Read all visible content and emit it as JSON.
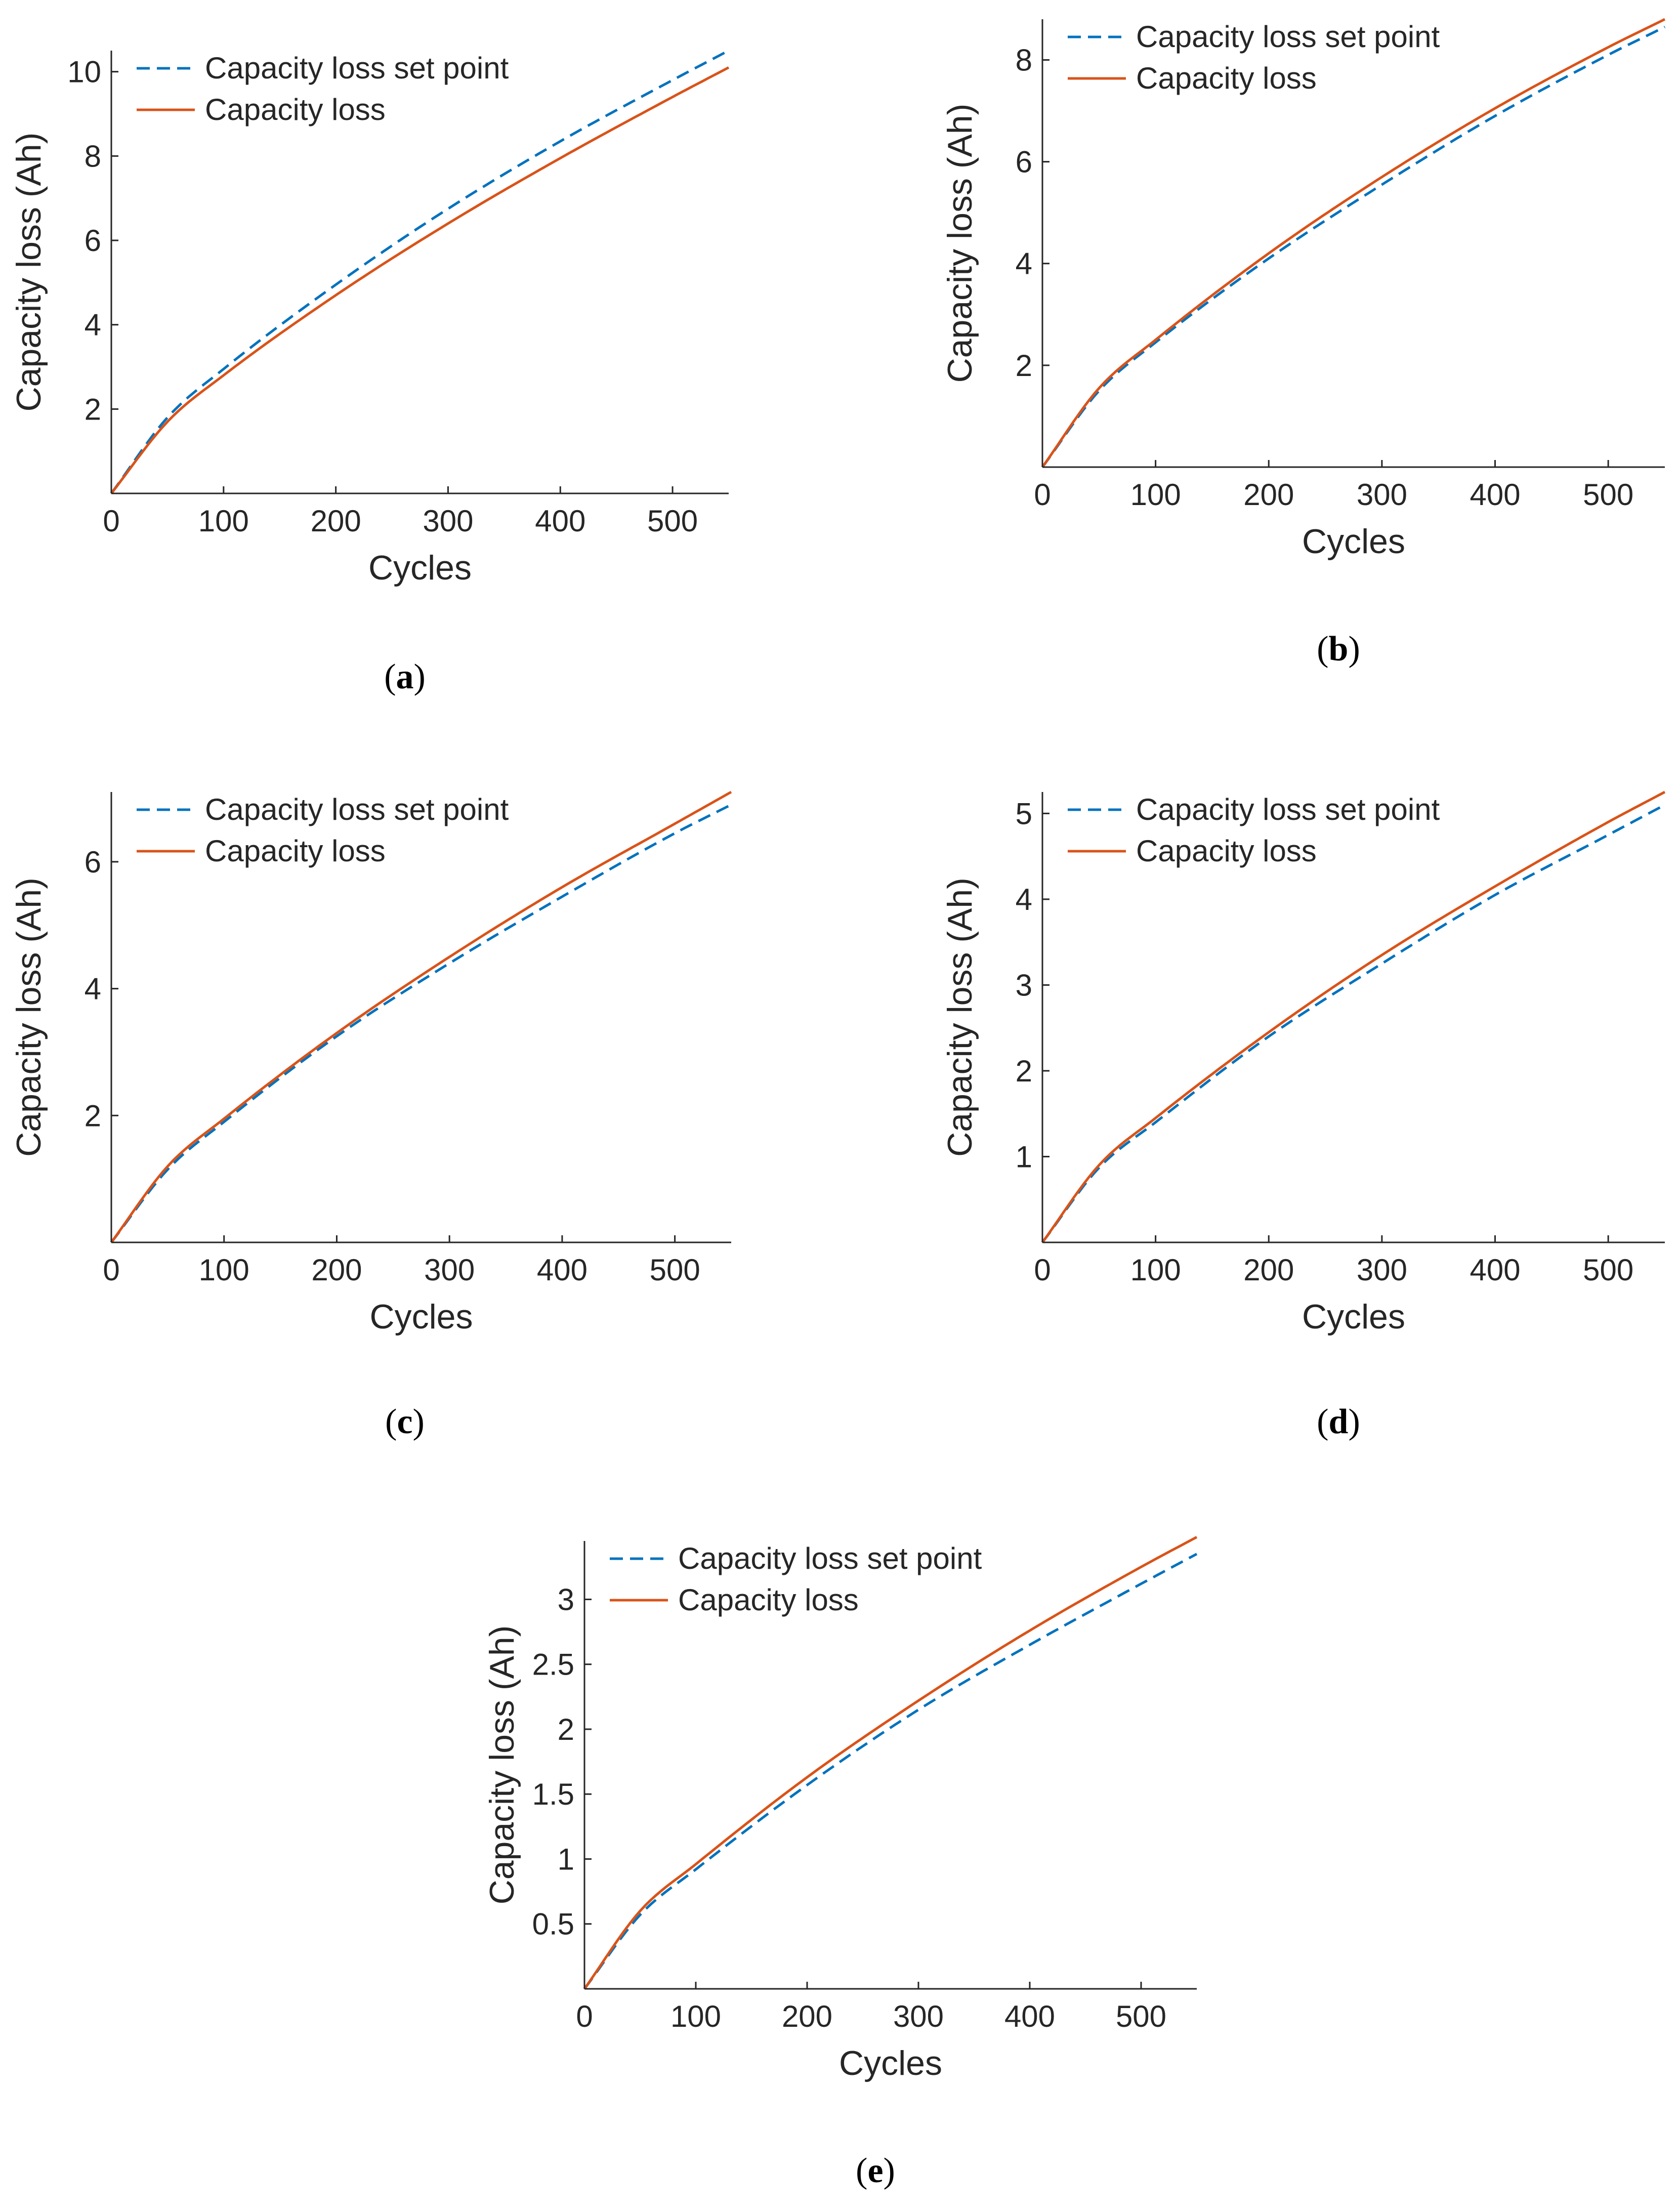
{
  "colors": {
    "set_point": "#0072BD",
    "capacity_loss": "#D95319",
    "axis": "#262626"
  },
  "chart_data": [
    {
      "type": "line",
      "panel": "a",
      "xlabel": "Cycles",
      "ylabel": "Capacity loss (Ah)",
      "xlim": [
        0,
        550
      ],
      "ylim": [
        0,
        10.5
      ],
      "xticks": [
        0,
        100,
        200,
        300,
        400,
        500
      ],
      "yticks": [
        2,
        4,
        6,
        8,
        10
      ],
      "legend_position": "top-left",
      "series": [
        {
          "name": "Capacity loss set point",
          "style": "dashed",
          "x": [
            0,
            50,
            100,
            200,
            300,
            400,
            500,
            550
          ],
          "y": [
            0,
            1.8,
            2.95,
            4.95,
            6.75,
            8.35,
            9.8,
            10.5
          ]
        },
        {
          "name": "Capacity loss",
          "style": "solid",
          "x": [
            0,
            50,
            100,
            200,
            300,
            400,
            500,
            550
          ],
          "y": [
            0,
            1.7,
            2.8,
            4.7,
            6.4,
            7.95,
            9.4,
            10.1
          ]
        }
      ]
    },
    {
      "type": "line",
      "panel": "b",
      "xlabel": "Cycles",
      "ylabel": "Capacity loss (Ah)",
      "xlim": [
        0,
        550
      ],
      "ylim": [
        0,
        8.8
      ],
      "xticks": [
        0,
        100,
        200,
        300,
        400,
        500
      ],
      "yticks": [
        2,
        4,
        6,
        8
      ],
      "legend_position": "top-left",
      "series": [
        {
          "name": "Capacity loss set point",
          "style": "dashed",
          "x": [
            0,
            50,
            100,
            200,
            300,
            400,
            500,
            550
          ],
          "y": [
            0,
            1.5,
            2.45,
            4.1,
            5.55,
            6.9,
            8.1,
            8.65
          ]
        },
        {
          "name": "Capacity loss",
          "style": "solid",
          "x": [
            0,
            50,
            100,
            200,
            300,
            400,
            500,
            550
          ],
          "y": [
            0,
            1.55,
            2.5,
            4.2,
            5.7,
            7.05,
            8.25,
            8.8
          ]
        }
      ]
    },
    {
      "type": "line",
      "panel": "c",
      "xlabel": "Cycles",
      "ylabel": "Capacity loss (Ah)",
      "xlim": [
        0,
        550
      ],
      "ylim": [
        0,
        7.1
      ],
      "xticks": [
        0,
        100,
        200,
        300,
        400,
        500
      ],
      "yticks": [
        2,
        4,
        6
      ],
      "legend_position": "top-left",
      "series": [
        {
          "name": "Capacity loss set point",
          "style": "dashed",
          "x": [
            0,
            50,
            100,
            200,
            300,
            400,
            500,
            550
          ],
          "y": [
            0,
            1.15,
            1.9,
            3.25,
            4.4,
            5.45,
            6.45,
            6.9
          ]
        },
        {
          "name": "Capacity loss",
          "style": "solid",
          "x": [
            0,
            50,
            100,
            200,
            300,
            400,
            500,
            550
          ],
          "y": [
            0,
            1.2,
            1.95,
            3.3,
            4.5,
            5.6,
            6.6,
            7.1
          ]
        }
      ]
    },
    {
      "type": "line",
      "panel": "d",
      "xlabel": "Cycles",
      "ylabel": "Capacity loss (Ah)",
      "xlim": [
        0,
        550
      ],
      "ylim": [
        0,
        5.25
      ],
      "xticks": [
        0,
        100,
        200,
        300,
        400,
        500
      ],
      "yticks": [
        1,
        2,
        3,
        4,
        5
      ],
      "legend_position": "top-left",
      "series": [
        {
          "name": "Capacity loss set point",
          "style": "dashed",
          "x": [
            0,
            50,
            100,
            200,
            300,
            400,
            500,
            550
          ],
          "y": [
            0,
            0.87,
            1.4,
            2.4,
            3.25,
            4.05,
            4.75,
            5.1
          ]
        },
        {
          "name": "Capacity loss",
          "style": "solid",
          "x": [
            0,
            50,
            100,
            200,
            300,
            400,
            500,
            550
          ],
          "y": [
            0,
            0.9,
            1.45,
            2.45,
            3.35,
            4.15,
            4.9,
            5.25
          ]
        }
      ]
    },
    {
      "type": "line",
      "panel": "e",
      "xlabel": "Cycles",
      "ylabel": "Capacity loss (Ah)",
      "xlim": [
        0,
        550
      ],
      "ylim": [
        0,
        3.45
      ],
      "xticks": [
        0,
        100,
        200,
        300,
        400,
        500
      ],
      "yticks": [
        0.5,
        1,
        1.5,
        2,
        2.5,
        3
      ],
      "legend_position": "top-left",
      "series": [
        {
          "name": "Capacity loss set point",
          "style": "dashed",
          "x": [
            0,
            50,
            100,
            200,
            300,
            400,
            500,
            550
          ],
          "y": [
            0,
            0.57,
            0.92,
            1.57,
            2.15,
            2.65,
            3.12,
            3.35
          ]
        },
        {
          "name": "Capacity loss",
          "style": "solid",
          "x": [
            0,
            50,
            100,
            200,
            300,
            400,
            500,
            550
          ],
          "y": [
            0,
            0.6,
            0.96,
            1.63,
            2.22,
            2.76,
            3.25,
            3.48
          ]
        }
      ]
    }
  ]
}
